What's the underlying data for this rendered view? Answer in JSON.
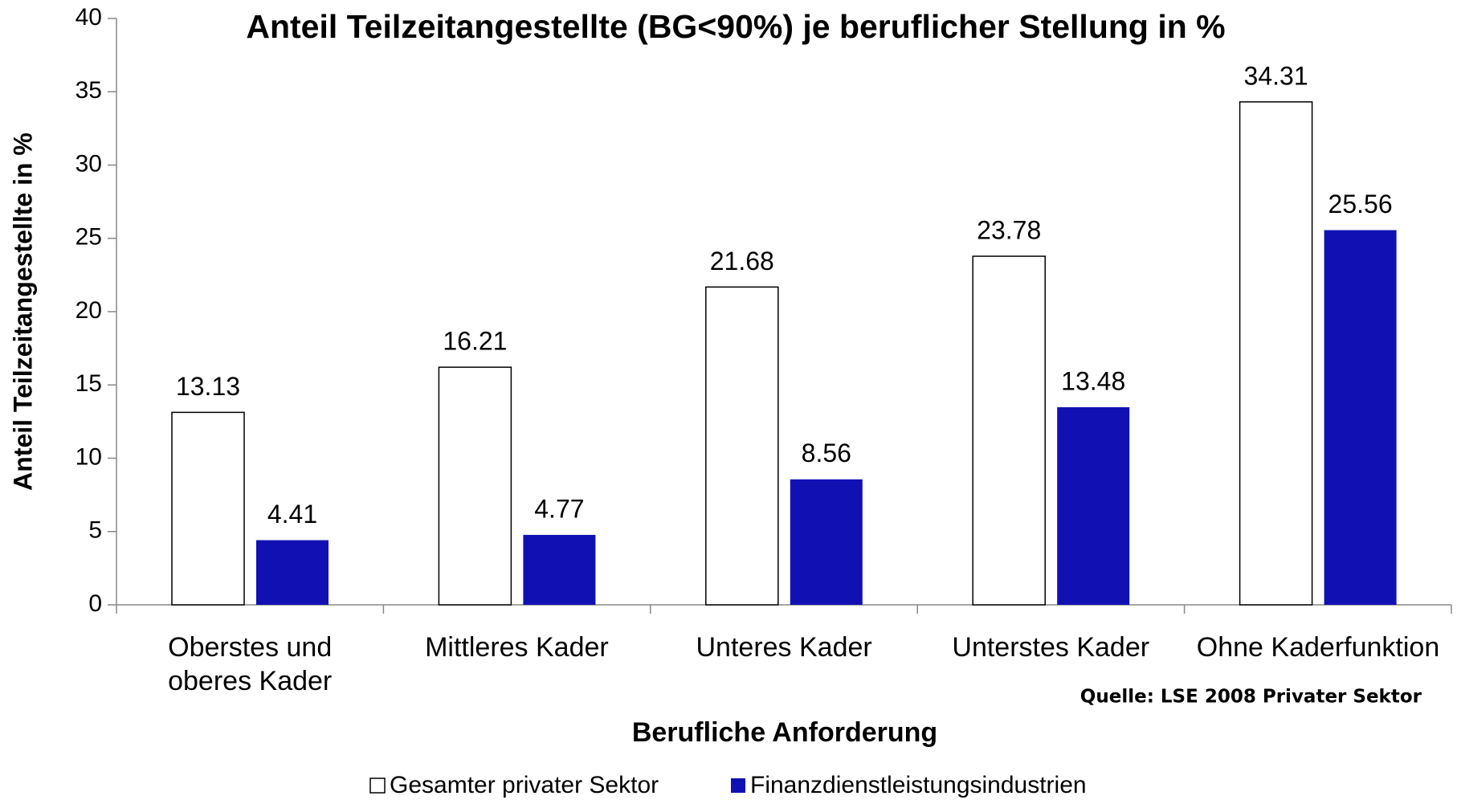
{
  "chart_data": {
    "type": "bar",
    "title": "Anteil Teilzeitangestellte (BG<90%) je beruflicher Stellung in %",
    "x_label": "Berufliche Anforderung",
    "y_label": "Anteil Teilzeitangestellte in %",
    "source": "Quelle: LSE 2008 Privater Sektor",
    "categories": [
      "Oberstes und oberes Kader",
      "Mittleres Kader",
      "Unteres Kader",
      "Unterstes Kader",
      "Ohne Kaderfunktion"
    ],
    "series": [
      {
        "name": "Gesamter privater Sektor",
        "color": "#ffffff",
        "values": [
          13.13,
          16.21,
          21.68,
          23.78,
          34.31
        ]
      },
      {
        "name": "Finanzdienstleistungsindustrien",
        "color": "#1111b3",
        "values": [
          4.41,
          4.77,
          8.56,
          13.48,
          25.56
        ]
      }
    ],
    "ylim": [
      0,
      40
    ],
    "yticks": [
      0,
      5,
      10,
      15,
      20,
      25,
      30,
      35,
      40
    ],
    "grid": false,
    "legend": "bottom"
  }
}
